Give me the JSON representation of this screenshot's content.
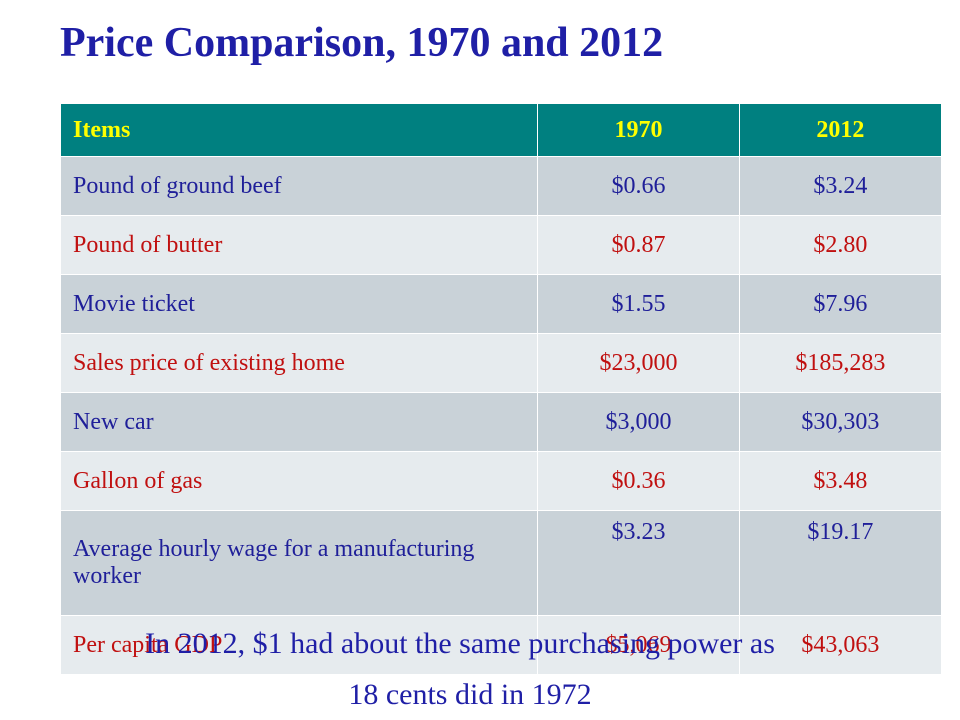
{
  "title": "Price Comparison, 1970 and 2012",
  "table": {
    "headers": [
      "Items",
      "1970",
      "2012"
    ],
    "rows": [
      {
        "item": "Pound of ground beef",
        "v1970": "$0.66",
        "v2012": "$3.24"
      },
      {
        "item": "Pound of butter",
        "v1970": "$0.87",
        "v2012": "$2.80"
      },
      {
        "item": "Movie ticket",
        "v1970": "$1.55",
        "v2012": "$7.96"
      },
      {
        "item": "Sales price of existing home",
        "v1970": "$23,000",
        "v2012": "$185,283"
      },
      {
        "item": "New car",
        "v1970": "$3,000",
        "v2012": "$30,303"
      },
      {
        "item": "Gallon of gas",
        "v1970": "$0.36",
        "v2012": "$3.48"
      },
      {
        "item": "Average hourly wage for a manufacturing worker",
        "v1970": "$3.23",
        "v2012": "$19.17"
      },
      {
        "item": "Per capita GDP",
        "v1970": "$5,069",
        "v2012": "$43,063"
      }
    ]
  },
  "caption": {
    "line1": "In 2012, $1 had about the same purchasing power as",
    "line2": "18 cents did in 1972"
  },
  "colors": {
    "title": "#1f1fa6",
    "header_bg": "#008080",
    "header_text": "#ffff00",
    "row_odd_bg": "#c9d2d8",
    "row_odd_text": "#1f1f99",
    "row_even_bg": "#e6ebee",
    "row_even_text": "#c01010"
  }
}
